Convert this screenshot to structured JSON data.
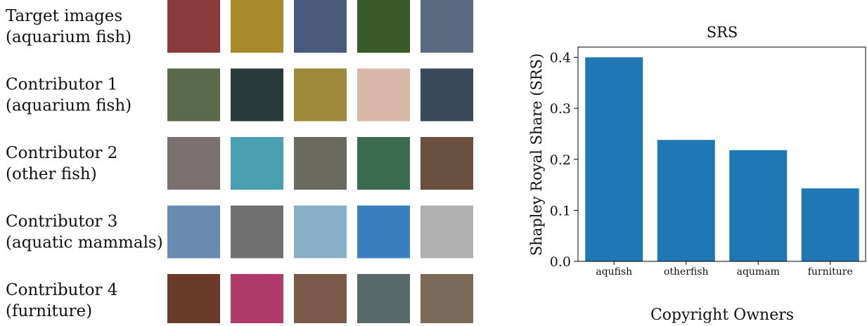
{
  "rows": [
    {
      "label": [
        "Target images",
        "(aquarium fish)"
      ]
    },
    {
      "label": [
        "Contributor 1",
        "(aquarium fish)"
      ]
    },
    {
      "label": [
        "Contributor 2",
        "(other fish)"
      ]
    },
    {
      "label": [
        "Contributor 3",
        "(aquatic mammals)"
      ]
    },
    {
      "label": [
        "Contributor 4",
        "(furniture)"
      ]
    }
  ],
  "chart_data": {
    "type": "bar",
    "title": "SRS",
    "x_label": "Copyright Owners",
    "y_label": "Shapley Royal Share (SRS)",
    "categories": [
      "aqufish",
      "otherfish",
      "aqumam",
      "furniture"
    ],
    "values": [
      0.4,
      0.238,
      0.218,
      0.143
    ],
    "color": "#1f77b4",
    "ylim": [
      0,
      0.42
    ],
    "yticks": [
      {
        "value": 0,
        "label": "0.0"
      },
      0.1,
      0.2,
      0.3,
      0.4
    ]
  }
}
